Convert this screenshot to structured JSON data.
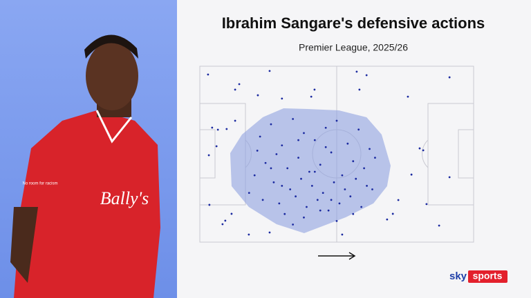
{
  "chart_data": {
    "type": "scatter",
    "title": "Ibrahim Sangare's defensive actions",
    "subtitle": "Premier League, 2025/26",
    "xlim": [
      0,
      100
    ],
    "ylim": [
      0,
      100
    ],
    "color": "#1b2aa0",
    "hull_color": "#8fa2e0",
    "x": [
      3,
      25.5,
      57.3,
      60.9,
      91.2,
      14.4,
      12.9,
      41.9,
      40.7,
      30,
      21.2,
      58.3,
      76,
      4.5,
      6.6,
      6.1,
      12.9,
      9.8,
      80.3,
      81.6,
      77.3,
      82.8,
      72.5,
      70.5,
      68.4,
      9.3,
      8.3,
      11.6,
      17.9,
      25.5,
      52,
      87.4,
      91.2,
      3.5,
      3.3,
      22,
      26,
      30,
      34,
      38,
      42,
      46,
      50,
      54,
      58,
      62,
      24,
      28,
      32,
      36,
      40,
      44,
      48,
      52,
      56,
      60,
      64,
      20,
      27,
      33,
      37,
      41,
      45,
      49,
      53,
      57,
      61,
      18,
      23,
      29,
      35,
      39,
      43,
      47,
      51,
      55,
      59,
      63,
      21,
      31,
      38,
      44,
      50,
      56,
      26,
      34,
      42,
      48,
      36,
      46,
      30
    ],
    "y": [
      4.7,
      2.7,
      3.1,
      5.1,
      6.3,
      10.2,
      13.3,
      13.3,
      17.3,
      18.4,
      16.5,
      13.3,
      17.3,
      34.9,
      36.1,
      45.5,
      31,
      35.7,
      46.7,
      47.8,
      61.6,
      78.4,
      76.1,
      83.9,
      87.1,
      87.8,
      89.8,
      83.9,
      95.7,
      94.5,
      95.7,
      90.6,
      63.1,
      78.8,
      50.6,
      40,
      33,
      45,
      30,
      38,
      42,
      35,
      31,
      44,
      36,
      47,
      55,
      50,
      58,
      52,
      60,
      56,
      49,
      62,
      54,
      58,
      52,
      62,
      66,
      70,
      64,
      68,
      72,
      66,
      70,
      64,
      68,
      72,
      76,
      78,
      74,
      80,
      76,
      82,
      78,
      74,
      80,
      70,
      48,
      84,
      86,
      82,
      88,
      84,
      58,
      90,
      60,
      76,
      42,
      46,
      68
    ],
    "hull_x": [
      11.1,
      15.4,
      23,
      30.6,
      39.4,
      50.8,
      60.9,
      66.4,
      69.7,
      68.4,
      63.4,
      53.3,
      38.1,
      28,
      17.9,
      11.6
    ],
    "hull_y": [
      49.4,
      38.8,
      29,
      23.9,
      24.3,
      25.1,
      29,
      38.8,
      56.5,
      68.2,
      78,
      85.9,
      94.9,
      89.8,
      80,
      68.2
    ]
  },
  "shirt": {
    "sponsor": "Bally's",
    "sleeve": "No room for racism"
  },
  "logo": {
    "sky": "sky",
    "sports": "sports"
  }
}
